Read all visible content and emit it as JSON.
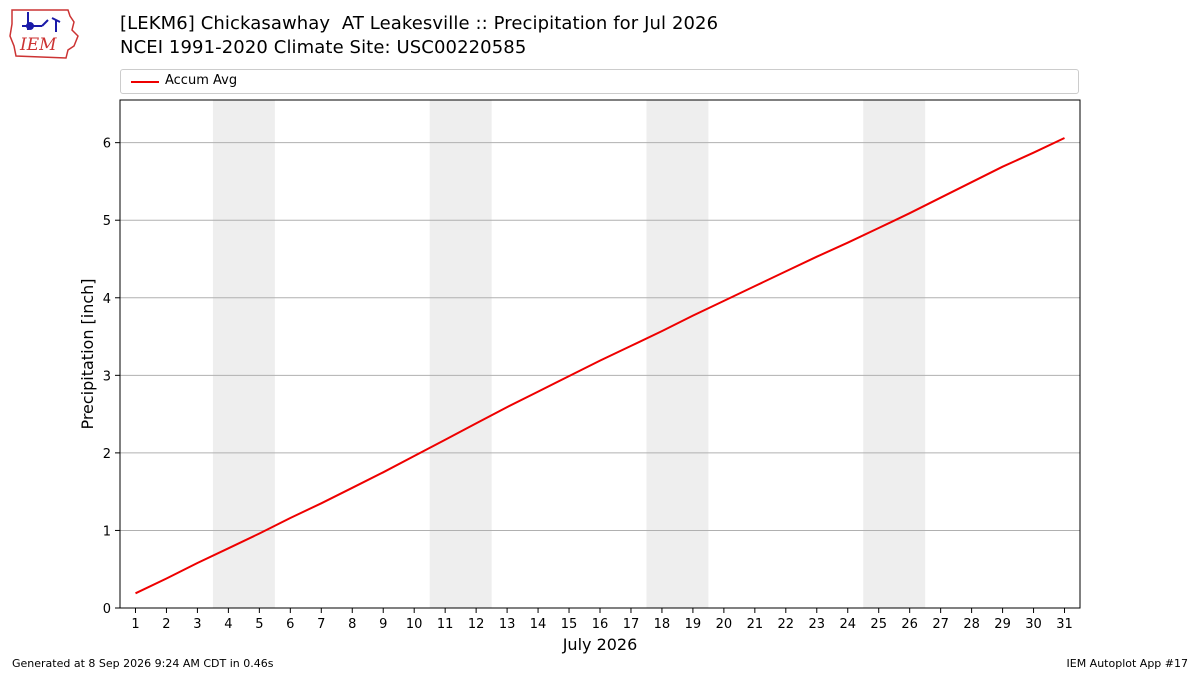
{
  "header": {
    "title_line1": "[LEKM6] Chickasawhay  AT Leakesville :: Precipitation for Jul 2026",
    "title_line2": "NCEI 1991-2020 Climate Site: USC00220585"
  },
  "logo": {
    "text": "IEM"
  },
  "footer": {
    "generated": "Generated at 8 Sep 2026 9:24 AM CDT in 0.46s",
    "app": "IEM Autoplot App #17"
  },
  "colors": {
    "series": "#ee0000",
    "weekend_band": "#eeeeee",
    "grid": "#b0b0b0",
    "logo_outline": "#cc3333",
    "logo_text": "#cc3333",
    "logo_icon": "#1a1aa8"
  },
  "chart_data": {
    "type": "line",
    "title": "[LEKM6] Chickasawhay  AT Leakesville :: Precipitation for Jul 2026",
    "subtitle": "NCEI 1991-2020 Climate Site: USC00220585",
    "xlabel": "July 2026",
    "ylabel": "Precipitation [inch]",
    "xlim": [
      0.5,
      31.5
    ],
    "ylim": [
      0,
      6.55
    ],
    "x_ticks": [
      1,
      2,
      3,
      4,
      5,
      6,
      7,
      8,
      9,
      10,
      11,
      12,
      13,
      14,
      15,
      16,
      17,
      18,
      19,
      20,
      21,
      22,
      23,
      24,
      25,
      26,
      27,
      28,
      29,
      30,
      31
    ],
    "y_ticks": [
      0,
      1,
      2,
      3,
      4,
      5,
      6
    ],
    "grid": "horizontal",
    "legend_position": "top",
    "weekend_bands": [
      [
        3.5,
        5.5
      ],
      [
        10.5,
        12.5
      ],
      [
        17.5,
        19.5
      ],
      [
        24.5,
        26.5
      ]
    ],
    "series": [
      {
        "name": "Accum Avg",
        "x": [
          1,
          2,
          3,
          4,
          5,
          6,
          7,
          8,
          9,
          10,
          11,
          12,
          13,
          14,
          15,
          16,
          17,
          18,
          19,
          20,
          21,
          22,
          23,
          24,
          25,
          26,
          27,
          28,
          29,
          30,
          31
        ],
        "values": [
          0.19,
          0.38,
          0.58,
          0.77,
          0.96,
          1.16,
          1.35,
          1.55,
          1.75,
          1.96,
          2.17,
          2.38,
          2.59,
          2.79,
          2.99,
          3.19,
          3.38,
          3.57,
          3.77,
          3.96,
          4.15,
          4.34,
          4.53,
          4.71,
          4.9,
          5.09,
          5.29,
          5.49,
          5.69,
          5.87,
          6.06
        ]
      }
    ]
  }
}
